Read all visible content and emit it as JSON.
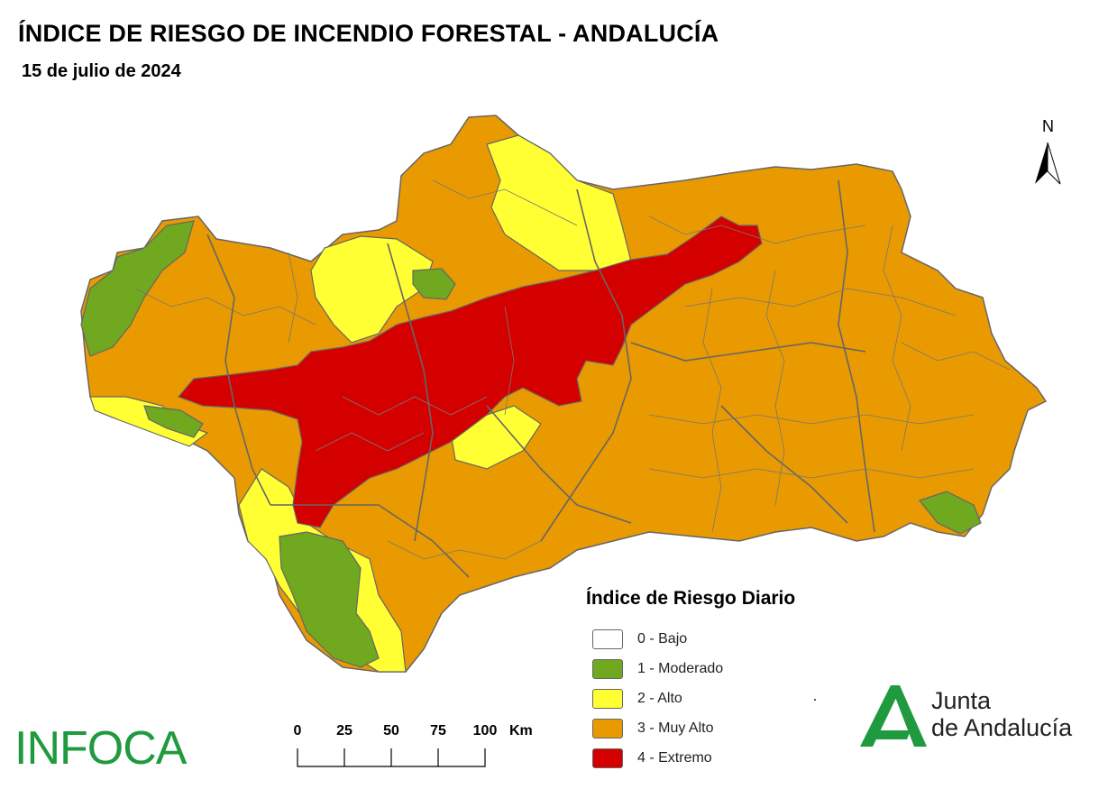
{
  "header": {
    "title": "ÍNDICE DE RIESGO DE INCENDIO FORESTAL - ANDALUCÍA",
    "date": "15 de julio de 2024"
  },
  "north_arrow": {
    "label": "N"
  },
  "legend": {
    "title": "Índice de Riesgo Diario",
    "items": [
      {
        "label": "0 - Bajo",
        "color": "#ffffff"
      },
      {
        "label": "1 - Moderado",
        "color": "#70a820"
      },
      {
        "label": "2 - Alto",
        "color": "#ffff33"
      },
      {
        "label": "3 - Muy Alto",
        "color": "#e99a00"
      },
      {
        "label": "4 - Extremo",
        "color": "#d40000"
      }
    ]
  },
  "scale_bar": {
    "ticks": [
      "0",
      "25",
      "50",
      "75",
      "100"
    ],
    "unit": "Km"
  },
  "logos": {
    "infoca": "INFOCA",
    "junta_line1": "Junta",
    "junta_line2": "de Andalucía"
  },
  "map": {
    "border_color": "#666666"
  }
}
